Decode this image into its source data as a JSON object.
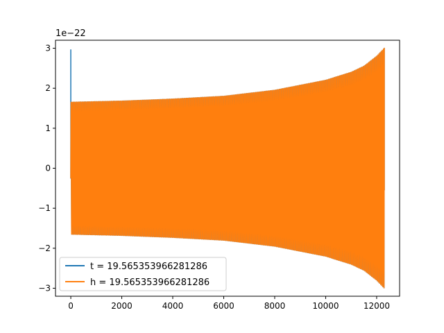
{
  "chart_data": {
    "type": "line",
    "title": "",
    "xlabel": "",
    "ylabel": "",
    "y_offset_label": "1e−22",
    "xlim": [
      -600,
      12900
    ],
    "ylim": [
      -3.2,
      3.2
    ],
    "x_ticks": [
      0,
      2000,
      4000,
      6000,
      8000,
      10000,
      12000
    ],
    "x_tick_labels": [
      "0",
      "2000",
      "4000",
      "6000",
      "8000",
      "10000",
      "12000"
    ],
    "y_ticks": [
      -3,
      -2,
      -1,
      0,
      1,
      2,
      3
    ],
    "y_tick_labels": [
      "−3",
      "−2",
      "−1",
      "0",
      "1",
      "2",
      "3"
    ],
    "grid": false,
    "legend_position": "lower-left",
    "envelope": {
      "x": [
        0,
        2000,
        4000,
        6000,
        8000,
        10000,
        11000,
        11500,
        12000,
        12300
      ],
      "amplitude": [
        1.65,
        1.68,
        1.73,
        1.8,
        1.95,
        2.2,
        2.4,
        2.55,
        2.8,
        3.0
      ]
    },
    "series": [
      {
        "name": "t = 19.565353966281286",
        "color": "#1f77b4",
        "x_range": [
          0,
          12300
        ],
        "initial_spike": [
          {
            "x": 0,
            "y": 2.97
          },
          {
            "x": 0,
            "y": -0.25
          }
        ],
        "final_value": -0.55,
        "cycles": 280
      },
      {
        "name": "h = 19.565353966281286",
        "color": "#ff7f0e",
        "x_range": [
          0,
          12300
        ],
        "initial_value": -0.25,
        "final_value": -0.55,
        "cycles": 280
      }
    ]
  }
}
